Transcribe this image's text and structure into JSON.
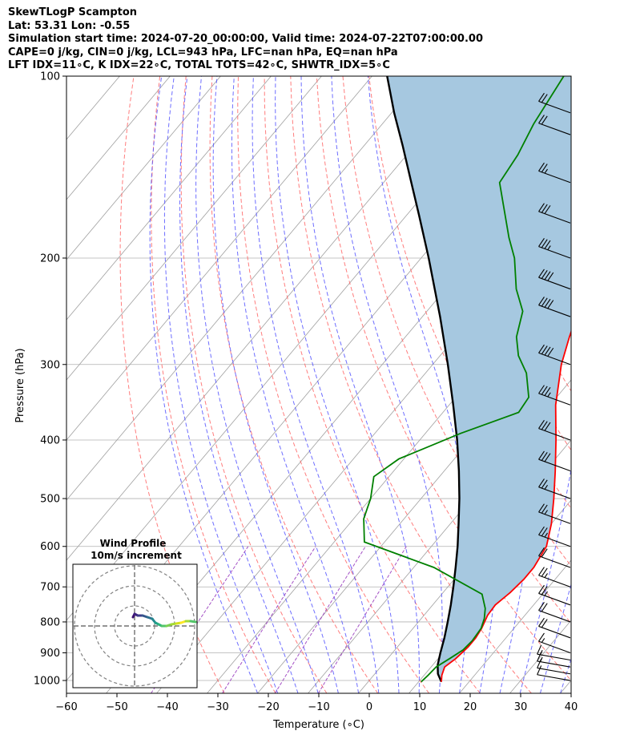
{
  "header": {
    "line1": "SkewTLogP Scampton",
    "line2": "Lat: 53.31   Lon: -0.55",
    "line3": "Simulation start time: 2024-07-20_00:00:00, Valid time: 2024-07-22T07:00:00.00",
    "line4": "CAPE=0 j/kg, CIN=0 j/kg, LCL=943 hPa, LFC=nan hPa, EQ=nan hPa",
    "line5": "LFT IDX=11∘C, K IDX=22∘C, TOTAL TOTS=42∘C, SHWTR_IDX=5∘C"
  },
  "colors": {
    "temperature": "#ff0000",
    "dewpoint": "#008000",
    "parcel": "#000000",
    "cape_fill": "#a6c8e0",
    "dry_adiabat": "#ff6666",
    "moist_adiabat": "#5555ff",
    "mixing_ratio": "#9a3fbf",
    "isotherm": "#999999"
  },
  "chart_data": [
    {
      "type": "line",
      "subtype": "skew-t log-p",
      "xlabel": "Temperature (∘C)",
      "ylabel": "Pressure (hPa)",
      "x_ticks": [
        -60,
        -50,
        -40,
        -30,
        -20,
        -10,
        0,
        10,
        20,
        30,
        40
      ],
      "x_tick_labels": [
        "−60",
        "−50",
        "−40",
        "−30",
        "−20",
        "−10",
        "0",
        "10",
        "20",
        "30",
        "40"
      ],
      "y_ticks": [
        100,
        200,
        300,
        400,
        500,
        600,
        700,
        800,
        900,
        1000
      ],
      "y_tick_labels": [
        "100",
        "200",
        "300",
        "400",
        "500",
        "600",
        "700",
        "800",
        "900",
        "1000"
      ],
      "xlim": [
        -60,
        40
      ],
      "ylim": [
        1050,
        100
      ],
      "y_scale": "log",
      "grid": true,
      "series": [
        {
          "key": "temperature",
          "values": [
            [
              1005,
              14.5
            ],
            [
              980,
              13.5
            ],
            [
              950,
              12.7
            ],
            [
              920,
              13.5
            ],
            [
              880,
              14.0
            ],
            [
              850,
              14.0
            ],
            [
              820,
              13.6
            ],
            [
              780,
              12.6
            ],
            [
              750,
              12.4
            ],
            [
              715,
              13.3
            ],
            [
              680,
              13.8
            ],
            [
              650,
              13.8
            ],
            [
              600,
              12.8
            ],
            [
              550,
              10.0
            ],
            [
              500,
              6.3
            ],
            [
              450,
              2.0
            ],
            [
              400,
              -3.0
            ],
            [
              350,
              -8.9
            ],
            [
              300,
              -14.5
            ],
            [
              270,
              -17.5
            ],
            [
              250,
              -19.5
            ],
            [
              230,
              -21.8
            ],
            [
              215,
              -23.4
            ],
            [
              200,
              -25.5
            ],
            [
              180,
              -30.0
            ],
            [
              165,
              -35.0
            ],
            [
              150,
              -40.0
            ],
            [
              140,
              -45.0
            ],
            [
              130,
              -48.5
            ],
            [
              120,
              -52.0
            ],
            [
              110,
              -55.0
            ],
            [
              100,
              -59.0
            ]
          ]
        },
        {
          "key": "dewpoint",
          "values": [
            [
              1005,
              10.5
            ],
            [
              980,
              10.8
            ],
            [
              950,
              11.0
            ],
            [
              920,
              12.3
            ],
            [
              890,
              13.5
            ],
            [
              860,
              13.8
            ],
            [
              820,
              13.5
            ],
            [
              790,
              12.5
            ],
            [
              760,
              11.0
            ],
            [
              720,
              8.0
            ],
            [
              650,
              -6.0
            ],
            [
              590,
              -24.0
            ],
            [
              540,
              -28.0
            ],
            [
              500,
              -30.0
            ],
            [
              460,
              -33.0
            ],
            [
              430,
              -31.0
            ],
            [
              390,
              -23.0
            ],
            [
              360,
              -15.0
            ],
            [
              340,
              -15.5
            ],
            [
              310,
              -20.0
            ],
            [
              290,
              -24.5
            ],
            [
              270,
              -28.0
            ],
            [
              245,
              -31.0
            ],
            [
              225,
              -36.0
            ],
            [
              200,
              -41.5
            ],
            [
              185,
              -46.0
            ],
            [
              165,
              -52.0
            ],
            [
              150,
              -57.0
            ],
            [
              135,
              -58.0
            ],
            [
              120,
              -60.0
            ],
            [
              100,
              -62.0
            ]
          ]
        },
        {
          "key": "parcel",
          "values": [
            [
              1005,
              14.5
            ],
            [
              975,
              12.5
            ],
            [
              943,
              11.0
            ],
            [
              900,
              9.5
            ],
            [
              850,
              7.8
            ],
            [
              800,
              5.8
            ],
            [
              750,
              3.6
            ],
            [
              700,
              1.1
            ],
            [
              650,
              -1.7
            ],
            [
              600,
              -4.8
            ],
            [
              550,
              -8.4
            ],
            [
              500,
              -12.4
            ],
            [
              450,
              -17.1
            ],
            [
              400,
              -22.6
            ],
            [
              350,
              -29.2
            ],
            [
              300,
              -37.0
            ],
            [
              250,
              -46.5
            ],
            [
              200,
              -58.5
            ],
            [
              170,
              -67.5
            ],
            [
              150,
              -74.5
            ],
            [
              130,
              -82.5
            ],
            [
              115,
              -89.5
            ],
            [
              100,
              -97.0
            ]
          ]
        }
      ],
      "wind_barbs": {
        "pressures": [
          1000,
          975,
          950,
          925,
          900,
          850,
          800,
          750,
          700,
          650,
          600,
          550,
          500,
          450,
          400,
          350,
          300,
          250,
          225,
          200,
          175,
          150,
          125,
          115
        ],
        "speed_kt": [
          10,
          12,
          15,
          15,
          15,
          20,
          20,
          25,
          25,
          20,
          25,
          25,
          25,
          30,
          30,
          35,
          40,
          40,
          40,
          35,
          30,
          25,
          20,
          20
        ],
        "direction_deg": [
          280,
          280,
          280,
          280,
          290,
          290,
          290,
          290,
          290,
          290,
          290,
          290,
          290,
          290,
          290,
          290,
          290,
          290,
          290,
          290,
          290,
          290,
          290,
          290
        ]
      }
    },
    {
      "type": "line",
      "subtype": "hodograph",
      "title": "Wind Profile",
      "subtitle": "10m/s increment",
      "ring_increment_ms": 10,
      "rings": [
        1,
        2,
        3
      ]
    }
  ]
}
